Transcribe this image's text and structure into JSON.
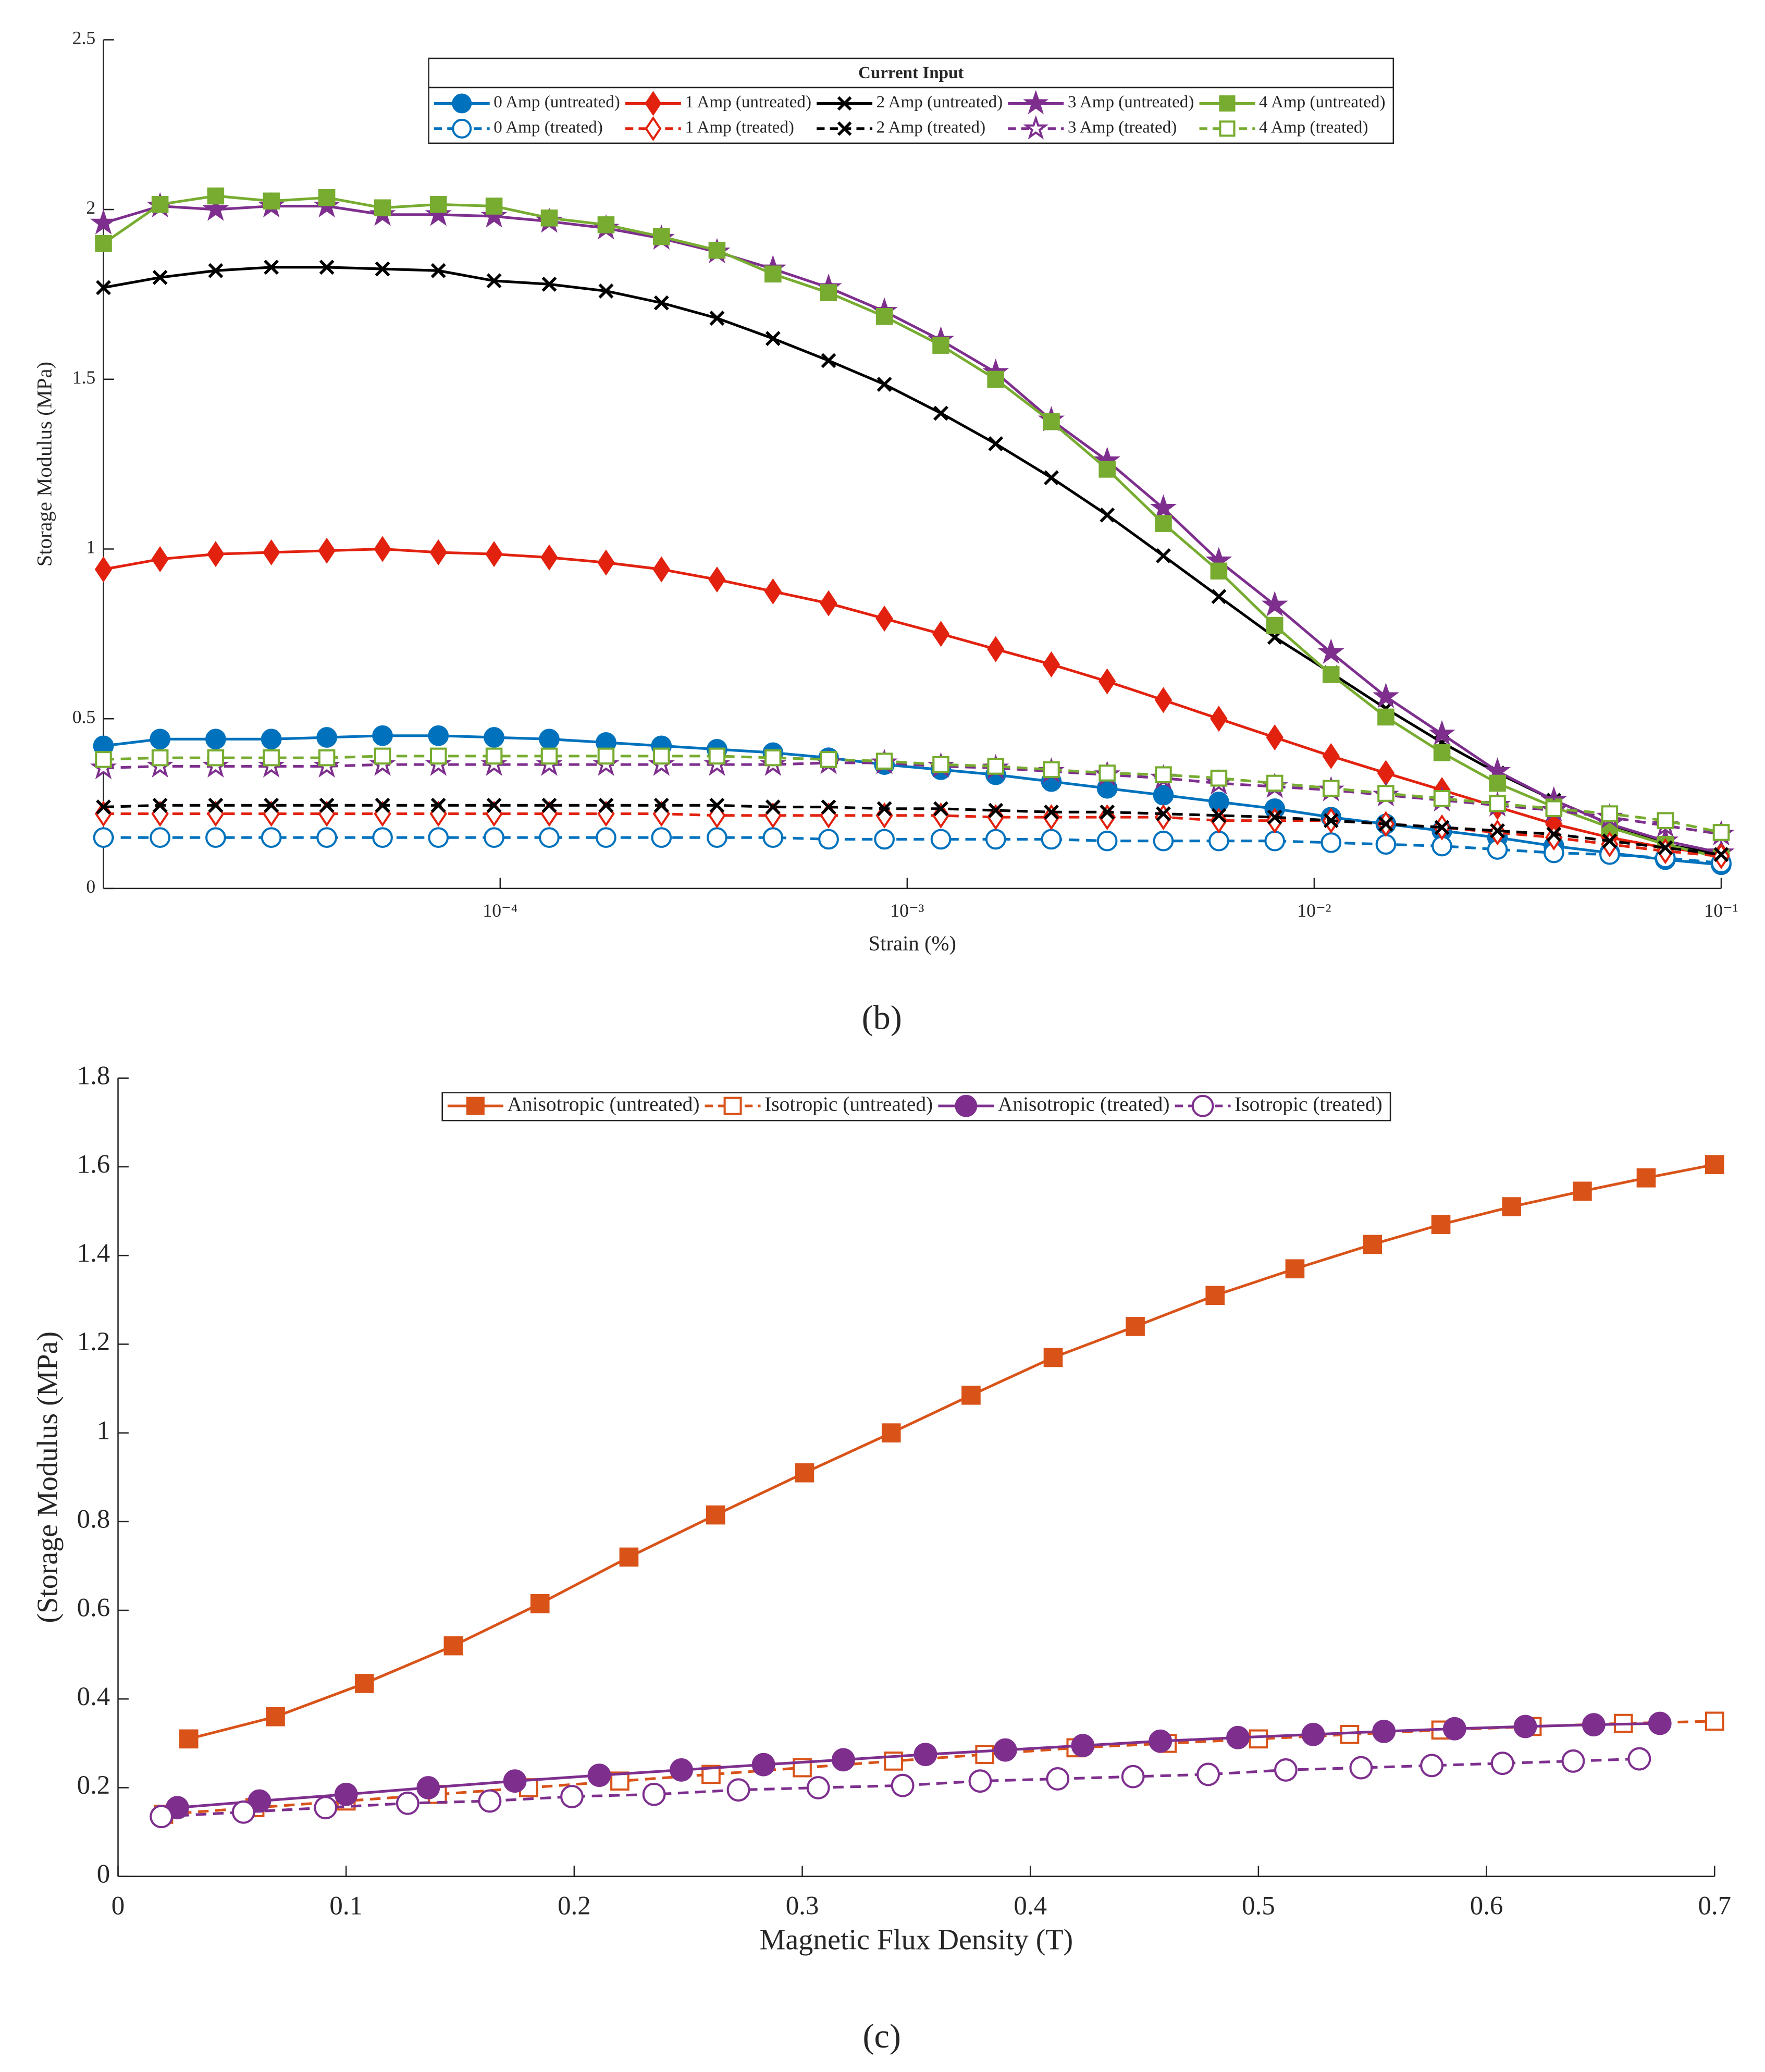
{
  "chart_data": [
    {
      "type": "line",
      "caption": "(b)",
      "xlabel": "Strain (%)",
      "ylabel": "Storage Modulus (MPa)",
      "xscale": "log",
      "xlim": [
        1.06e-05,
        0.1
      ],
      "ylim": [
        0,
        2.5
      ],
      "xticks": [
        {
          "value": 0.0001,
          "label": "10⁻⁴"
        },
        {
          "value": 0.001,
          "label": "10⁻³"
        },
        {
          "value": 0.01,
          "label": "10⁻²"
        },
        {
          "value": 0.1,
          "label": "10⁻¹"
        }
      ],
      "yticks": [
        0,
        0.5,
        1,
        1.5,
        2,
        2.5
      ],
      "legend": "north",
      "legend_title": "Current Input",
      "x": [
        1.06e-05,
        1.46e-05,
        2e-05,
        2.74e-05,
        3.75e-05,
        5.14e-05,
        7.05e-05,
        9.66e-05,
        0.000132,
        0.000182,
        0.000249,
        0.000341,
        0.000468,
        0.000641,
        0.000879,
        0.00121,
        0.00165,
        0.00226,
        0.0031,
        0.00426,
        0.00583,
        0.008,
        0.011,
        0.015,
        0.0206,
        0.0282,
        0.0388,
        0.0532,
        0.0729,
        0.1
      ],
      "series": [
        {
          "name": "0 Amp (untreated)",
          "color": "#0072bd",
          "marker": "circle",
          "filled": true,
          "dashed": false,
          "values": [
            0.42,
            0.44,
            0.44,
            0.44,
            0.445,
            0.45,
            0.45,
            0.445,
            0.44,
            0.43,
            0.42,
            0.41,
            0.4,
            0.385,
            0.365,
            0.35,
            0.335,
            0.315,
            0.295,
            0.275,
            0.255,
            0.235,
            0.21,
            0.19,
            0.17,
            0.15,
            0.125,
            0.105,
            0.085,
            0.07
          ]
        },
        {
          "name": "1 Amp (untreated)",
          "color": "#e2220f",
          "marker": "diamond",
          "filled": true,
          "dashed": false,
          "values": [
            0.94,
            0.97,
            0.985,
            0.99,
            0.995,
            1.0,
            0.99,
            0.985,
            0.975,
            0.96,
            0.94,
            0.91,
            0.875,
            0.84,
            0.795,
            0.75,
            0.705,
            0.66,
            0.61,
            0.555,
            0.5,
            0.445,
            0.39,
            0.34,
            0.29,
            0.24,
            0.19,
            0.15,
            0.12,
            0.1
          ]
        },
        {
          "name": "2 Amp (untreated)",
          "color": "#000000",
          "marker": "x",
          "filled": true,
          "dashed": false,
          "values": [
            1.77,
            1.8,
            1.82,
            1.83,
            1.83,
            1.825,
            1.82,
            1.79,
            1.78,
            1.76,
            1.725,
            1.68,
            1.62,
            1.555,
            1.485,
            1.4,
            1.31,
            1.21,
            1.1,
            0.98,
            0.86,
            0.74,
            0.635,
            0.53,
            0.43,
            0.34,
            0.26,
            0.19,
            0.13,
            0.1
          ]
        },
        {
          "name": "3 Amp (untreated)",
          "color": "#7e2f8e",
          "marker": "star",
          "filled": true,
          "dashed": false,
          "values": [
            1.96,
            2.01,
            2.0,
            2.01,
            2.01,
            1.985,
            1.985,
            1.98,
            1.965,
            1.945,
            1.915,
            1.875,
            1.825,
            1.77,
            1.7,
            1.615,
            1.52,
            1.38,
            1.26,
            1.12,
            0.965,
            0.835,
            0.695,
            0.565,
            0.455,
            0.345,
            0.26,
            0.19,
            0.14,
            0.105
          ]
        },
        {
          "name": "4 Amp (untreated)",
          "color": "#77ac30",
          "marker": "square",
          "filled": true,
          "dashed": false,
          "values": [
            1.9,
            2.015,
            2.04,
            2.025,
            2.035,
            2.005,
            2.015,
            2.01,
            1.975,
            1.955,
            1.92,
            1.88,
            1.81,
            1.755,
            1.685,
            1.6,
            1.5,
            1.375,
            1.235,
            1.075,
            0.935,
            0.775,
            0.63,
            0.505,
            0.4,
            0.31,
            0.24,
            0.18,
            0.13,
            0.09
          ]
        },
        {
          "name": "0 Amp (treated)",
          "color": "#0072bd",
          "marker": "circle",
          "filled": false,
          "dashed": true,
          "values": [
            0.15,
            0.15,
            0.15,
            0.15,
            0.15,
            0.15,
            0.15,
            0.15,
            0.15,
            0.15,
            0.15,
            0.15,
            0.15,
            0.145,
            0.145,
            0.145,
            0.145,
            0.145,
            0.14,
            0.14,
            0.14,
            0.14,
            0.135,
            0.13,
            0.125,
            0.115,
            0.105,
            0.1,
            0.09,
            0.075
          ]
        },
        {
          "name": "1 Amp (treated)",
          "color": "#e2220f",
          "marker": "diamond",
          "filled": false,
          "dashed": true,
          "values": [
            0.22,
            0.22,
            0.22,
            0.22,
            0.22,
            0.22,
            0.22,
            0.22,
            0.22,
            0.22,
            0.22,
            0.215,
            0.215,
            0.215,
            0.215,
            0.215,
            0.21,
            0.21,
            0.21,
            0.21,
            0.2,
            0.2,
            0.2,
            0.19,
            0.18,
            0.165,
            0.15,
            0.13,
            0.11,
            0.095
          ]
        },
        {
          "name": "2 Amp (treated)",
          "color": "#000000",
          "marker": "x",
          "filled": false,
          "dashed": true,
          "values": [
            0.24,
            0.245,
            0.245,
            0.245,
            0.245,
            0.245,
            0.245,
            0.245,
            0.245,
            0.245,
            0.245,
            0.245,
            0.24,
            0.24,
            0.235,
            0.235,
            0.23,
            0.225,
            0.225,
            0.22,
            0.215,
            0.21,
            0.2,
            0.19,
            0.18,
            0.17,
            0.16,
            0.14,
            0.12,
            0.1
          ]
        },
        {
          "name": "3 Amp (treated)",
          "color": "#7e2f8e",
          "marker": "star",
          "filled": false,
          "dashed": true,
          "values": [
            0.355,
            0.36,
            0.36,
            0.36,
            0.36,
            0.365,
            0.365,
            0.365,
            0.365,
            0.365,
            0.365,
            0.365,
            0.365,
            0.37,
            0.37,
            0.36,
            0.355,
            0.345,
            0.335,
            0.325,
            0.31,
            0.3,
            0.29,
            0.275,
            0.26,
            0.245,
            0.23,
            0.21,
            0.185,
            0.16
          ]
        },
        {
          "name": "4 Amp (treated)",
          "color": "#77ac30",
          "marker": "square",
          "filled": false,
          "dashed": true,
          "values": [
            0.38,
            0.385,
            0.385,
            0.385,
            0.385,
            0.39,
            0.39,
            0.39,
            0.39,
            0.39,
            0.39,
            0.39,
            0.385,
            0.38,
            0.375,
            0.365,
            0.36,
            0.35,
            0.34,
            0.335,
            0.325,
            0.31,
            0.295,
            0.28,
            0.265,
            0.25,
            0.235,
            0.22,
            0.2,
            0.165
          ]
        }
      ]
    },
    {
      "type": "line",
      "caption": "(c)",
      "xlabel": "Magnetic Flux Density (T)",
      "ylabel": "(Storage Modulus (MPa)",
      "xlim": [
        0,
        0.7
      ],
      "ylim": [
        0,
        1.8
      ],
      "xticks": [
        0,
        0.1,
        0.2,
        0.3,
        0.4,
        0.5,
        0.6,
        0.7
      ],
      "yticks": [
        0,
        0.2,
        0.4,
        0.6,
        0.8,
        1,
        1.2,
        1.4,
        1.6,
        1.8
      ],
      "legend": "north",
      "series": [
        {
          "name": "Anisotropic (untreated)",
          "color": "#d95319",
          "marker": "square",
          "filled": true,
          "dashed": false,
          "x": [
            0.031,
            0.069,
            0.108,
            0.147,
            0.185,
            0.224,
            0.262,
            0.301,
            0.339,
            0.374,
            0.41,
            0.446,
            0.481,
            0.516,
            0.55,
            0.58,
            0.611,
            0.642,
            0.67,
            0.7
          ],
          "values": [
            0.31,
            0.36,
            0.435,
            0.52,
            0.615,
            0.72,
            0.815,
            0.91,
            1.0,
            1.085,
            1.17,
            1.24,
            1.31,
            1.37,
            1.425,
            1.47,
            1.51,
            1.545,
            1.575,
            1.605
          ]
        },
        {
          "name": "Isotropic (untreated)",
          "color": "#d95319",
          "marker": "square",
          "filled": false,
          "dashed": true,
          "x": [
            0.02,
            0.06,
            0.1,
            0.14,
            0.18,
            0.22,
            0.26,
            0.3,
            0.34,
            0.38,
            0.42,
            0.46,
            0.5,
            0.54,
            0.58,
            0.62,
            0.66,
            0.7
          ],
          "values": [
            0.14,
            0.155,
            0.17,
            0.185,
            0.2,
            0.215,
            0.23,
            0.245,
            0.26,
            0.275,
            0.29,
            0.3,
            0.31,
            0.32,
            0.33,
            0.338,
            0.345,
            0.35
          ]
        },
        {
          "name": "Anisotropic (treated)",
          "color": "#7e2f8e",
          "marker": "circle",
          "filled": true,
          "dashed": false,
          "x": [
            0.026,
            0.062,
            0.1,
            0.136,
            0.174,
            0.211,
            0.247,
            0.283,
            0.318,
            0.354,
            0.389,
            0.423,
            0.457,
            0.491,
            0.524,
            0.555,
            0.586,
            0.617,
            0.647,
            0.676
          ],
          "values": [
            0.155,
            0.17,
            0.185,
            0.2,
            0.215,
            0.228,
            0.24,
            0.252,
            0.263,
            0.275,
            0.285,
            0.295,
            0.305,
            0.313,
            0.32,
            0.327,
            0.333,
            0.338,
            0.342,
            0.345
          ]
        },
        {
          "name": "Isotropic (treated)",
          "color": "#7e2f8e",
          "marker": "circle",
          "filled": false,
          "dashed": true,
          "x": [
            0.019,
            0.055,
            0.091,
            0.127,
            0.163,
            0.199,
            0.235,
            0.272,
            0.307,
            0.344,
            0.378,
            0.412,
            0.445,
            0.478,
            0.512,
            0.545,
            0.576,
            0.607,
            0.638,
            0.667
          ],
          "values": [
            0.135,
            0.145,
            0.155,
            0.165,
            0.17,
            0.18,
            0.185,
            0.195,
            0.2,
            0.205,
            0.215,
            0.22,
            0.225,
            0.23,
            0.24,
            0.245,
            0.25,
            0.255,
            0.26,
            0.265
          ]
        }
      ]
    }
  ]
}
